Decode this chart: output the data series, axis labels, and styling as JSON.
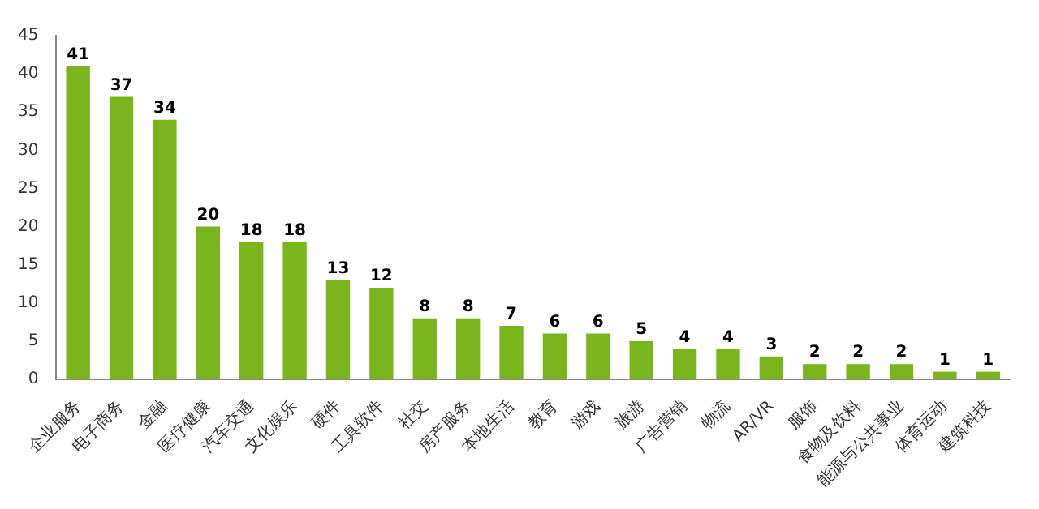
{
  "chart_data": {
    "type": "bar",
    "categories": [
      "企业服务",
      "电子商务",
      "金融",
      "医疗健康",
      "汽车交通",
      "文化娱乐",
      "硬件",
      "工具软件",
      "社交",
      "房产服务",
      "本地生活",
      "教育",
      "游戏",
      "旅游",
      "广告营销",
      "物流",
      "AR/VR",
      "服饰",
      "食物及饮料",
      "能源与公共事业",
      "体育运动",
      "建筑科技"
    ],
    "values": [
      41,
      37,
      34,
      20,
      18,
      18,
      13,
      12,
      8,
      8,
      7,
      6,
      6,
      5,
      4,
      4,
      3,
      2,
      2,
      2,
      1,
      1
    ],
    "color": "#7ab51d",
    "ylim": [
      0,
      45
    ],
    "yticks": [
      0,
      5,
      10,
      15,
      20,
      25,
      30,
      35,
      40,
      45
    ],
    "grid": false,
    "data_labels": true
  }
}
